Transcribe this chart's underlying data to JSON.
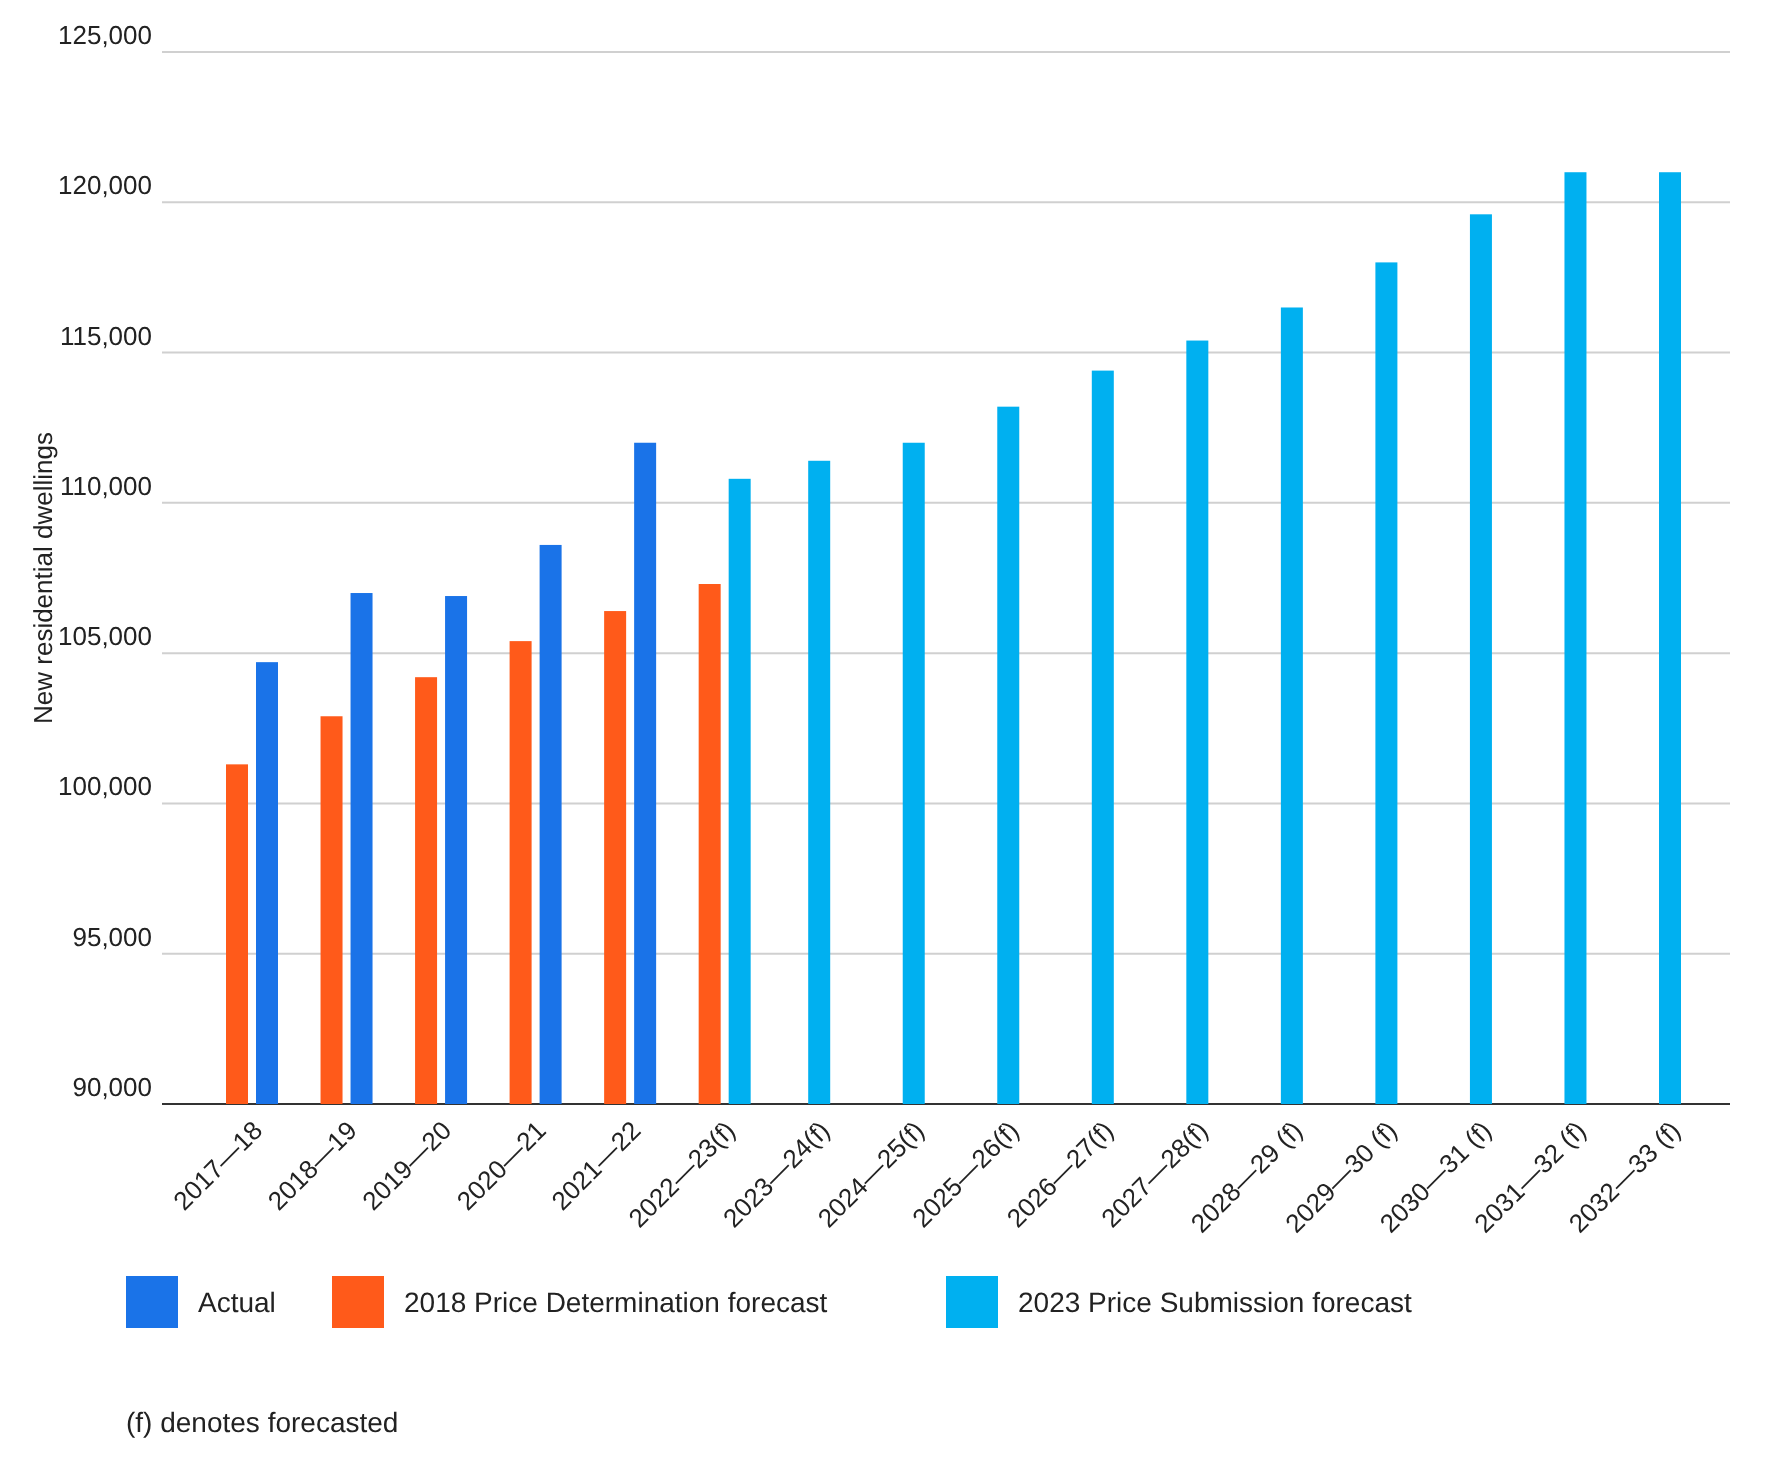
{
  "chart_data": {
    "type": "bar",
    "ylabel": "New residential dwellings",
    "categories": [
      "2017—18",
      "2018—19",
      "2019—20",
      "2020—21",
      "2021—22",
      "2022—23(f)",
      "2023—24(f)",
      "2024—25(f)",
      "2025—26(f)",
      "2026—27(f)",
      "2027—28(f)",
      "2028—29 (f)",
      "2029—30 (f)",
      "2030—31 (f)",
      "2031—32 (f)",
      "2032—33 (f)"
    ],
    "series": [
      {
        "name": "Actual",
        "color": "#1a73e8",
        "values": [
          104700,
          107000,
          106900,
          108600,
          112000,
          null,
          null,
          null,
          null,
          null,
          null,
          null,
          null,
          null,
          null,
          null
        ]
      },
      {
        "name": "2018 Price Determination forecast",
        "color": "#ff5a1a",
        "values": [
          101300,
          102900,
          104200,
          105400,
          106400,
          107300,
          null,
          null,
          null,
          null,
          null,
          null,
          null,
          null,
          null,
          null
        ]
      },
      {
        "name": "2023 Price Submission forecast",
        "color": "#00b0f0",
        "values": [
          null,
          null,
          null,
          null,
          null,
          110800,
          111400,
          112000,
          113200,
          114400,
          115400,
          116500,
          118000,
          119600,
          121000,
          121000
        ]
      }
    ],
    "ylim": [
      90000,
      125000
    ],
    "yticks": [
      {
        "value": 90000,
        "label": "90,000"
      },
      {
        "value": 95000,
        "label": "95,000"
      },
      {
        "value": 100000,
        "label": "100,000"
      },
      {
        "value": 105000,
        "label": "105,000"
      },
      {
        "value": 110000,
        "label": "110,000"
      },
      {
        "value": 115000,
        "label": "115,000"
      },
      {
        "value": 120000,
        "label": "120,000"
      },
      {
        "value": 125000,
        "label": "125,000"
      }
    ],
    "grid": "y",
    "legend": "bottom",
    "annotations": [
      "(f) denotes forecasted"
    ]
  }
}
